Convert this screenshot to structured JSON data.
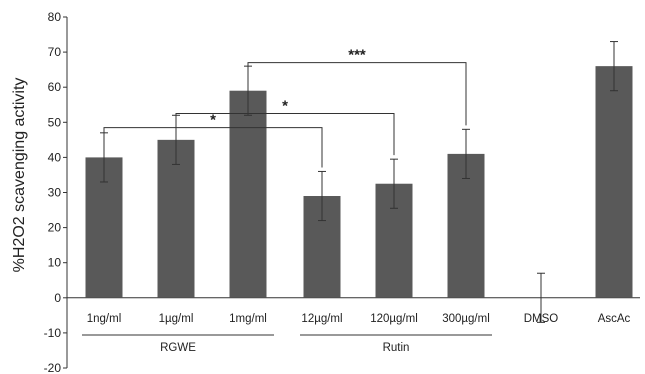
{
  "chart_data": {
    "type": "bar",
    "ylabel": "%H2O2 scavenging activity",
    "xlabel": "",
    "ylim": [
      -20,
      80
    ],
    "yticks": [
      -20,
      -10,
      0,
      10,
      20,
      30,
      40,
      50,
      60,
      70,
      80
    ],
    "grid": false,
    "bar_color": "#595959",
    "categories": [
      "1ng/ml",
      "1µg/ml",
      "1mg/ml",
      "12µg/ml",
      "120µg/ml",
      "300µg/ml",
      "DMSO",
      "AscAc"
    ],
    "values": [
      40,
      45,
      59,
      29,
      32.5,
      41,
      0,
      66
    ],
    "errors": [
      7,
      7,
      7,
      7,
      7,
      7,
      7,
      7
    ],
    "groups": [
      {
        "label": "RGWE",
        "from": 0,
        "to": 2
      },
      {
        "label": "Rutin",
        "from": 3,
        "to": 5
      }
    ],
    "significance": [
      {
        "from": 0,
        "to": 3,
        "label": "*",
        "y": 48.5
      },
      {
        "from": 1,
        "to": 4,
        "label": "*",
        "y": 52.5
      },
      {
        "from": 2,
        "to": 5,
        "label": "***",
        "y": 67
      }
    ]
  }
}
